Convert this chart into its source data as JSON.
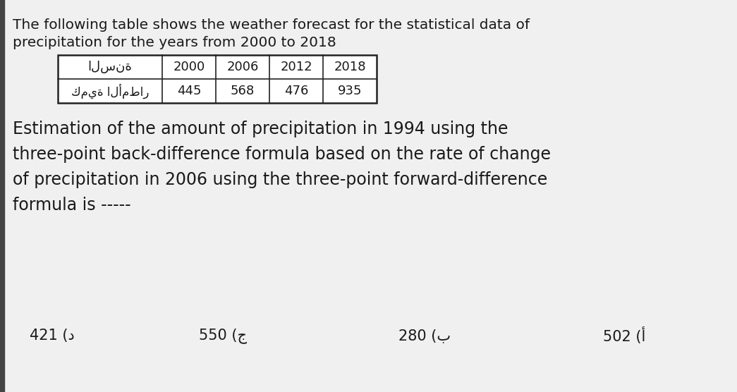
{
  "bg_color": "#f0f0f0",
  "intro_text_line1": "The following table shows the weather forecast for the statistical data of",
  "intro_text_line2": "precipitation for the years from 2000 to 2018",
  "table_header_arabic": "السنة",
  "table_row_arabic": "كمية الأمطار",
  "table_years": [
    "2000",
    "2006",
    "2012",
    "2018"
  ],
  "table_values": [
    "445",
    "568",
    "476",
    "935"
  ],
  "question_line1": "Estimation of the amount of precipitation in 1994 using the",
  "question_line2": "three-point back-difference formula based on the rate of change",
  "question_line3": "of precipitation in 2006 using the three-point forward-difference",
  "question_line4": "formula is -----",
  "answer_a": "421 (د",
  "answer_b": "550 (ج",
  "answer_c": "280 (ب",
  "answer_d": "502 (أ",
  "font_size_intro": 14.5,
  "font_size_table_header": 13,
  "font_size_table_arabic": 12,
  "font_size_question": 17,
  "font_size_answer": 15,
  "text_color": "#1a1a1a",
  "table_border_color": "#222222",
  "left_bar_color": "#444444",
  "white": "#ffffff"
}
